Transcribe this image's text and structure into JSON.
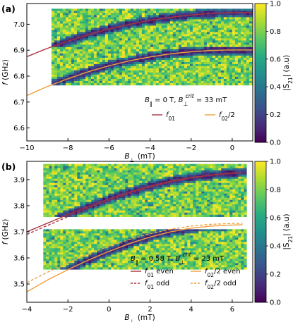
{
  "chart_data": [
    {
      "panel_label": "(a)",
      "type": "heatmap",
      "title": "B∥ = 0 T, B⊥crit = 33 mT",
      "title_parts": {
        "b_par": "B",
        "b_par_sub": "∥",
        "eq1": " = 0 T, ",
        "b_perp": "B",
        "b_perp_sub": "⊥",
        "b_perp_sup": "crit",
        "eq2": " = 33 mT"
      },
      "xlabel": "B⊥ (mT)",
      "ylabel": "f (GHz)",
      "xlim": [
        -10,
        1
      ],
      "ylim": [
        6.55,
        7.08
      ],
      "xticks": [
        -10,
        -8,
        -6,
        -4,
        -2,
        0
      ],
      "yticks": [
        6.6,
        6.7,
        6.8,
        6.9,
        7.0
      ],
      "colorbar": {
        "label": "|S21| (a.u)",
        "range": [
          0,
          1
        ],
        "ticks": [
          0.0,
          0.2,
          0.4,
          0.6,
          0.8,
          1.0
        ],
        "colormap": "viridis"
      },
      "data_extent": {
        "x": [
          -8.8,
          1
        ],
        "bands": [
          [
            6.77,
            6.92
          ],
          [
            6.92,
            7.06
          ]
        ]
      },
      "series": [
        {
          "name": "f01",
          "color": "#a8333f",
          "style": "solid",
          "x": [
            -10,
            -9,
            -8,
            -7,
            -6,
            -5,
            -4,
            -3,
            -2,
            -1,
            0,
            1
          ],
          "y": [
            6.875,
            6.907,
            6.935,
            6.96,
            6.982,
            7.0,
            7.015,
            7.027,
            7.036,
            7.042,
            7.045,
            7.045
          ]
        },
        {
          "name": "f02/2",
          "color": "#f0a03c",
          "style": "solid",
          "x": [
            -10,
            -9,
            -8,
            -7,
            -6,
            -5,
            -4,
            -3,
            -2,
            -1,
            0,
            1
          ],
          "y": [
            6.725,
            6.76,
            6.79,
            6.817,
            6.84,
            6.859,
            6.874,
            6.886,
            6.894,
            6.899,
            6.901,
            6.901
          ]
        }
      ],
      "legend": [
        {
          "label": "f01",
          "main": "f",
          "sub": "01",
          "tail": "",
          "color": "#a8333f",
          "style": "solid"
        },
        {
          "label": "f02/2",
          "main": "f",
          "sub": "02",
          "tail": "/2",
          "color": "#f0a03c",
          "style": "solid"
        }
      ],
      "legend_placement": "lower-right"
    },
    {
      "panel_label": "(b)",
      "type": "heatmap",
      "title": "B∥ = 0.58 T, B⊥crit = 23 mT",
      "title_parts": {
        "b_par": "B",
        "b_par_sub": "∥",
        "eq1": " = 0.58 T, ",
        "b_perp": "B",
        "b_perp_sub": "⊥",
        "b_perp_sup": "crit",
        "eq2": " = 23 mT"
      },
      "xlabel": "B⊥ (mT)",
      "ylabel": "f (GHz)",
      "xlim": [
        -4,
        7
      ],
      "ylim": [
        3.43,
        3.97
      ],
      "xticks": [
        -4,
        -2,
        0,
        2,
        4,
        6
      ],
      "yticks": [
        3.5,
        3.6,
        3.7,
        3.8,
        3.9
      ],
      "colorbar": {
        "label": "|S21| (a.u)",
        "range": [
          0,
          1
        ],
        "ticks": [
          0.0,
          0.2,
          0.4,
          0.6,
          0.8,
          1.0
        ],
        "colormap": "viridis"
      },
      "data_extent": {
        "x": [
          -3.2,
          6.6
        ],
        "bands": [
          [
            3.56,
            3.71
          ],
          [
            3.76,
            3.96
          ]
        ]
      },
      "series": [
        {
          "name": "f01 even",
          "color": "#a8333f",
          "style": "solid",
          "x": [
            -4,
            -3,
            -2,
            -1,
            0,
            1,
            2,
            3,
            4,
            5,
            6,
            6.5
          ],
          "y": [
            3.7,
            3.733,
            3.766,
            3.797,
            3.826,
            3.852,
            3.875,
            3.894,
            3.908,
            3.918,
            3.925,
            3.927
          ]
        },
        {
          "name": "f01 odd",
          "color": "#a8333f",
          "style": "dashed",
          "x": [
            -4,
            -3,
            -2,
            -1,
            0,
            1,
            2,
            3,
            4,
            5,
            6,
            6.5
          ],
          "y": [
            3.69,
            3.724,
            3.758,
            3.79,
            3.82,
            3.847,
            3.871,
            3.891,
            3.906,
            3.917,
            3.924,
            3.926
          ]
        },
        {
          "name": "f02/2 even",
          "color": "#f0a03c",
          "style": "solid",
          "x": [
            -4,
            -3,
            -2,
            -1,
            0,
            1,
            2,
            3,
            4,
            5,
            6,
            6.5
          ],
          "y": [
            3.47,
            3.515,
            3.555,
            3.592,
            3.625,
            3.655,
            3.68,
            3.7,
            3.714,
            3.722,
            3.726,
            3.727
          ]
        },
        {
          "name": "f02/2 odd",
          "color": "#f0a03c",
          "style": "dashed",
          "x": [
            -4,
            -3,
            -2,
            -1,
            0,
            1,
            2,
            3,
            4,
            5,
            6,
            6.5
          ],
          "y": [
            3.505,
            3.545,
            3.582,
            3.615,
            3.645,
            3.671,
            3.693,
            3.71,
            3.722,
            3.729,
            3.732,
            3.733
          ]
        }
      ],
      "legend": [
        {
          "label": "f01 even",
          "main": "f",
          "sub": "01",
          "tail": " even",
          "color": "#a8333f",
          "style": "solid"
        },
        {
          "label": "f02/2 even",
          "main": "f",
          "sub": "02",
          "tail": "/2 even",
          "color": "#f0a03c",
          "style": "solid"
        },
        {
          "label": "f01 odd",
          "main": "f",
          "sub": "01",
          "tail": " odd",
          "color": "#a8333f",
          "style": "dashed"
        },
        {
          "label": "f02/2 odd",
          "main": "f",
          "sub": "02",
          "tail": "/2 odd",
          "color": "#f0a03c",
          "style": "dashed"
        }
      ],
      "legend_placement": "lower-right"
    }
  ]
}
